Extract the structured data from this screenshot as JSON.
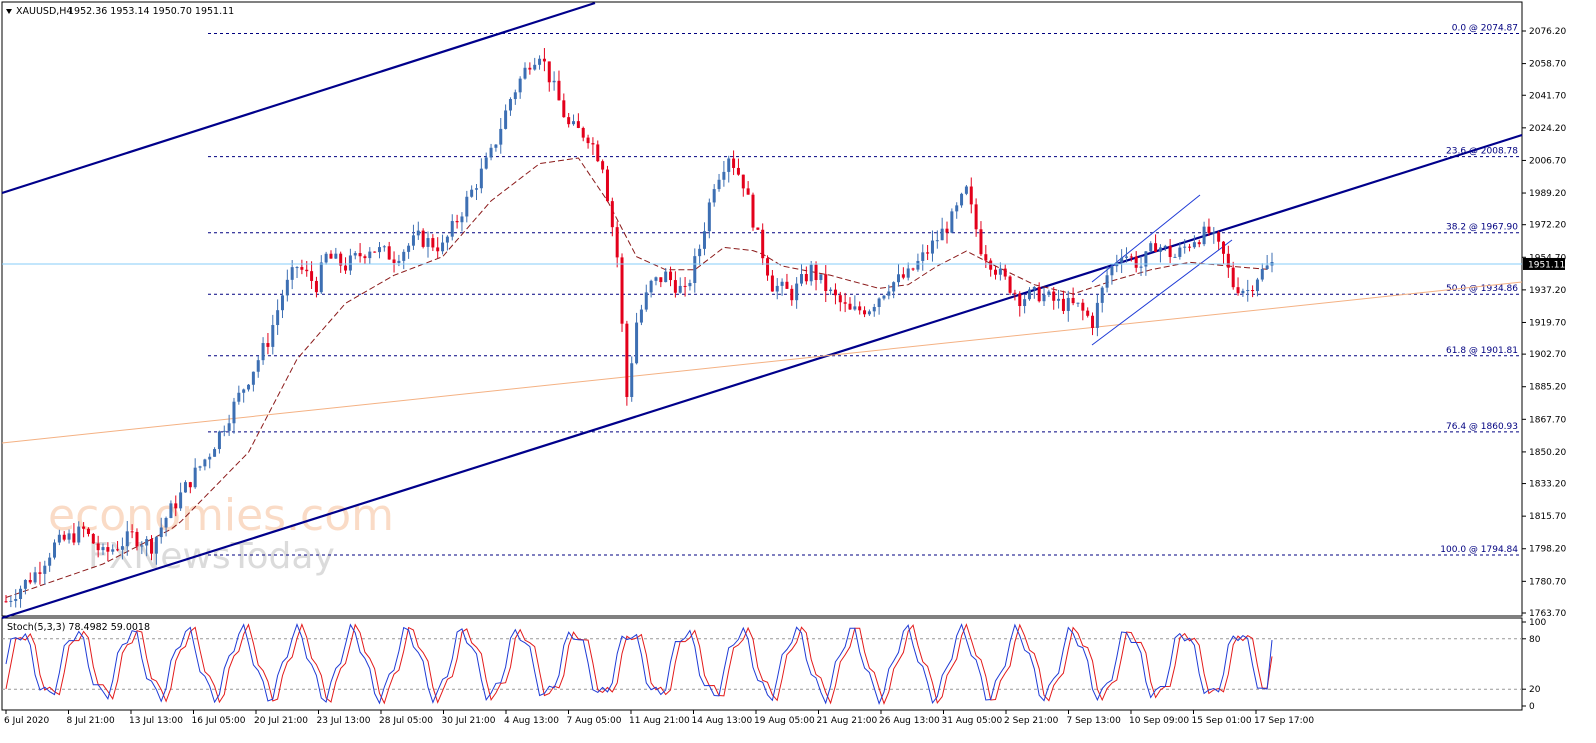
{
  "header": {
    "symbol": "XAUUSD,H4",
    "ohlc": "1952.36 1953.14 1950.70 1951.11"
  },
  "watermark": {
    "brand": "economies.com",
    "sub": "FXNewsToday"
  },
  "colors": {
    "bull": "#3d6fb3",
    "bear": "#e3001b",
    "trend": "#00008b",
    "fib": "#000080",
    "ma": "#8b1a1a",
    "bid": "#87cefa",
    "stoch_main": "#1f3bd6",
    "stoch_signal": "#e31b1b",
    "secondary_trend": "#f4b183"
  },
  "chart_data": [
    {
      "type": "candlestick",
      "title": "XAUUSD,H4",
      "ylim": [
        1763.7,
        2076.2
      ],
      "y_ticks": [
        "2076.20",
        "2058.70",
        "2041.70",
        "2024.20",
        "2006.70",
        "1989.20",
        "1972.20",
        "1954.70",
        "1937.20",
        "1919.70",
        "1902.70",
        "1885.20",
        "1867.70",
        "1850.20",
        "1833.20",
        "1815.70",
        "1798.20",
        "1780.70",
        "1763.70"
      ],
      "x_ticks": [
        "6 Jul 2020",
        "8 Jul 21:00",
        "13 Jul 13:00",
        "16 Jul 05:00",
        "20 Jul 21:00",
        "23 Jul 13:00",
        "28 Jul 05:00",
        "30 Jul 21:00",
        "4 Aug 13:00",
        "7 Aug 05:00",
        "11 Aug 21:00",
        "14 Aug 13:00",
        "19 Aug 05:00",
        "21 Aug 21:00",
        "26 Aug 13:00",
        "31 Aug 05:00",
        "2 Sep 21:00",
        "7 Sep 13:00",
        "10 Sep 09:00",
        "15 Sep 01:00",
        "17 Sep 17:00"
      ],
      "current_price": "1951.11",
      "fib_levels": [
        {
          "label": "0.0 @ 2074.87",
          "value": 2074.87
        },
        {
          "label": "23.6 @ 2008.78",
          "value": 2008.78
        },
        {
          "label": "38.2 @ 1967.90",
          "value": 1967.9
        },
        {
          "label": "50.0 @ 1934.86",
          "value": 1934.86
        },
        {
          "label": "61.8 @ 1901.81",
          "value": 1901.81
        },
        {
          "label": "76.4 @ 1860.93",
          "value": 1860.93
        },
        {
          "label": "100.0 @ 1794.84",
          "value": 1794.84
        }
      ],
      "price_path": [
        [
          0,
          1770
        ],
        [
          6,
          1785
        ],
        [
          10,
          1800
        ],
        [
          16,
          1808
        ],
        [
          20,
          1795
        ],
        [
          26,
          1805
        ],
        [
          30,
          1800
        ],
        [
          33,
          1815
        ],
        [
          38,
          1835
        ],
        [
          42,
          1850
        ],
        [
          46,
          1870
        ],
        [
          50,
          1890
        ],
        [
          54,
          1910
        ],
        [
          57,
          1935
        ],
        [
          60,
          1950
        ],
        [
          64,
          1940
        ],
        [
          66,
          1955
        ],
        [
          70,
          1950
        ],
        [
          75,
          1960
        ],
        [
          80,
          1955
        ],
        [
          85,
          1965
        ],
        [
          90,
          1960
        ],
        [
          95,
          1985
        ],
        [
          100,
          2010
        ],
        [
          104,
          2040
        ],
        [
          108,
          2060
        ],
        [
          110,
          2065
        ],
        [
          113,
          2045
        ],
        [
          116,
          2025
        ],
        [
          120,
          2020
        ],
        [
          123,
          2005
        ],
        [
          126,
          1955
        ],
        [
          128,
          1880
        ],
        [
          130,
          1920
        ],
        [
          133,
          1940
        ],
        [
          136,
          1945
        ],
        [
          140,
          1935
        ],
        [
          143,
          1960
        ],
        [
          146,
          1995
        ],
        [
          149,
          2010
        ],
        [
          152,
          1995
        ],
        [
          155,
          1965
        ],
        [
          158,
          1940
        ],
        [
          162,
          1935
        ],
        [
          166,
          1948
        ],
        [
          170,
          1935
        ],
        [
          174,
          1925
        ],
        [
          178,
          1928
        ],
        [
          182,
          1940
        ],
        [
          186,
          1945
        ],
        [
          190,
          1958
        ],
        [
          195,
          1975
        ],
        [
          198,
          1990
        ],
        [
          201,
          1960
        ],
        [
          205,
          1945
        ],
        [
          209,
          1933
        ],
        [
          213,
          1935
        ],
        [
          217,
          1930
        ],
        [
          221,
          1928
        ],
        [
          224,
          1920
        ],
        [
          227,
          1945
        ],
        [
          230,
          1958
        ],
        [
          234,
          1950
        ],
        [
          237,
          1962
        ],
        [
          241,
          1955
        ],
        [
          245,
          1965
        ],
        [
          248,
          1968
        ],
        [
          251,
          1955
        ],
        [
          253,
          1940
        ],
        [
          256,
          1937
        ],
        [
          258,
          1945
        ],
        [
          261,
          1951
        ]
      ],
      "n_bars": 262,
      "moving_average_path": [
        [
          0,
          1772
        ],
        [
          20,
          1790
        ],
        [
          35,
          1810
        ],
        [
          50,
          1850
        ],
        [
          60,
          1900
        ],
        [
          70,
          1930
        ],
        [
          80,
          1945
        ],
        [
          90,
          1955
        ],
        [
          100,
          1985
        ],
        [
          110,
          2005
        ],
        [
          118,
          2008
        ],
        [
          124,
          1985
        ],
        [
          130,
          1955
        ],
        [
          136,
          1948
        ],
        [
          142,
          1948
        ],
        [
          148,
          1960
        ],
        [
          155,
          1958
        ],
        [
          160,
          1950
        ],
        [
          170,
          1945
        ],
        [
          180,
          1938
        ],
        [
          186,
          1940
        ],
        [
          192,
          1950
        ],
        [
          198,
          1958
        ],
        [
          204,
          1950
        ],
        [
          212,
          1940
        ],
        [
          220,
          1935
        ],
        [
          228,
          1942
        ],
        [
          236,
          1948
        ],
        [
          244,
          1952
        ],
        [
          252,
          1950
        ],
        [
          261,
          1948
        ]
      ]
    },
    {
      "type": "line",
      "title": "Stoch(5,3,3) 78.4982 59.0018",
      "ylim": [
        0,
        100
      ],
      "y_ticks": [
        "100",
        "80",
        "20",
        "0"
      ],
      "levels": [
        80,
        20
      ],
      "series": [
        {
          "name": "main",
          "value": 78.4982
        },
        {
          "name": "signal",
          "value": 59.0018
        }
      ]
    }
  ]
}
